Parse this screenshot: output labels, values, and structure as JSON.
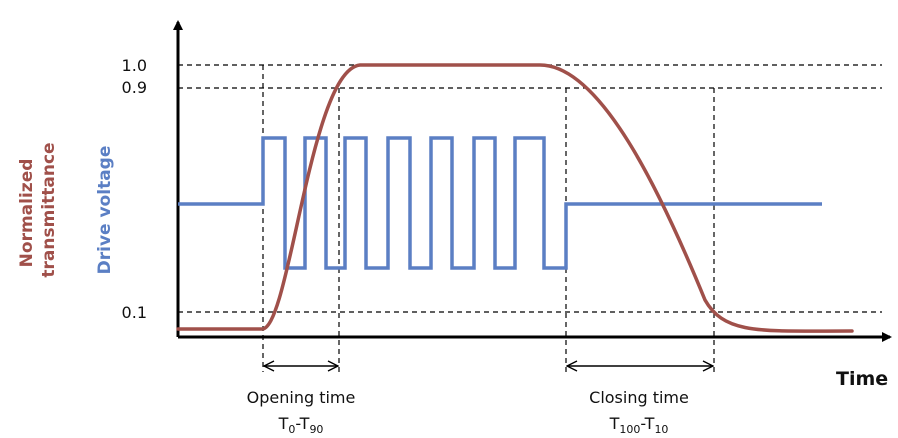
{
  "diagram": {
    "axes": {
      "x_label": "Time",
      "y_label_transmittance": [
        "Normalized",
        "transmittance"
      ],
      "y_label_voltage": "Drive voltage"
    },
    "levels": [
      "1.0",
      "0.9",
      "0.1"
    ],
    "annotations": {
      "opening": {
        "title": "Opening time",
        "t_sym": "T",
        "from_sub": "0",
        "sep": "-",
        "to_sub": "90"
      },
      "closing": {
        "title": "Closing time",
        "t_sym": "T",
        "from_sub": "100",
        "sep": "-",
        "to_sub": "10"
      }
    },
    "curves": {
      "transmittance": {
        "color": "#a0504a"
      },
      "drive_voltage": {
        "color": "#5b7fc4"
      }
    },
    "colors": {
      "axis": "#000000",
      "guide": "#000000"
    }
  }
}
